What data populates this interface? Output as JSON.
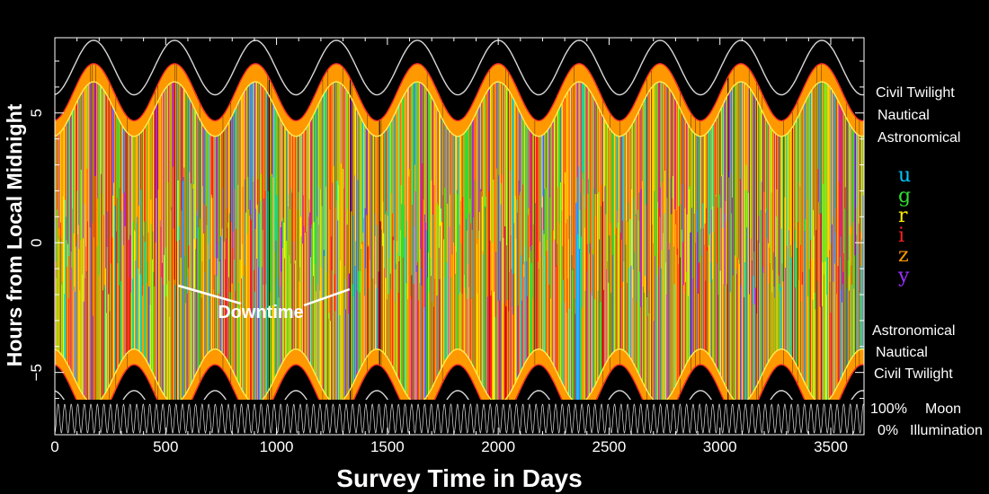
{
  "chart_data": {
    "type": "scatter",
    "title": "",
    "xlabel": "Survey Time in Days",
    "ylabel": "Hours from Local Midnight",
    "xlim": [
      0,
      3650
    ],
    "ylim": [
      -6.05,
      7.9
    ],
    "x_ticks": [
      0,
      500,
      1000,
      1500,
      2000,
      2500,
      3000,
      3500
    ],
    "x_tick_labels": [
      "0",
      "500",
      "1000",
      "1500",
      "2000",
      "2500",
      "3000",
      "3500"
    ],
    "y_ticks": [
      -5,
      0,
      5
    ],
    "y_tick_labels": [
      "−5",
      "0",
      "5"
    ],
    "grid": false,
    "background": "#000000",
    "season_period_days": 365,
    "first_season_peak_day": 175,
    "boundaries": [
      {
        "name": "Civil Twilight",
        "color": "#d8d8d8",
        "half_night_winter_hours": 7.8,
        "half_night_summer_hours": 5.7
      },
      {
        "name": "Nautical",
        "color": "#ff2a2a",
        "half_night_winter_hours": 6.9,
        "half_night_summer_hours": 4.7
      },
      {
        "name": "Astronomical",
        "color": "#ffee55",
        "half_night_winter_hours": 6.2,
        "half_night_summer_hours": 4.1
      }
    ],
    "legend_filters": [
      {
        "name": "u",
        "color": "#00c8ff"
      },
      {
        "name": "g",
        "color": "#33dd33"
      },
      {
        "name": "r",
        "color": "#ffee00"
      },
      {
        "name": "i",
        "color": "#ff2020"
      },
      {
        "name": "z",
        "color": "#ff9900"
      },
      {
        "name": "y",
        "color": "#9b30ff"
      }
    ],
    "legend_placement": "right",
    "moon_illumination_range_percent": [
      0,
      100
    ],
    "annotation": {
      "text": "Downtime",
      "points_to_days": [
        540,
        1330
      ]
    }
  },
  "labels": {
    "top": [
      "Civil Twilight",
      "Nautical",
      "Astronomical"
    ],
    "bottom": [
      "Astronomical",
      "Nautical",
      "Civil Twilight"
    ],
    "moon": {
      "pct_high": "100%",
      "word_top": "Moon",
      "pct_low": "0%",
      "word_bottom": "Illumination"
    }
  }
}
